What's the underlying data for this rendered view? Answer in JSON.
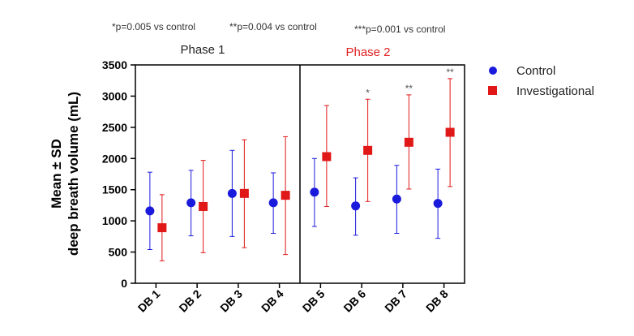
{
  "annotations": {
    "sig1": "*p=0.005 vs control",
    "sig2": "**p=0.004 vs control",
    "sig3": "***p=0.001 vs control"
  },
  "phases": [
    {
      "label": "Phase 1",
      "color": "#222222"
    },
    {
      "label": "Phase 2",
      "color": "#e02020"
    }
  ],
  "legend": {
    "control": "Control",
    "investigational": "Investigational"
  },
  "chart_data": {
    "type": "scatter",
    "subtype": "mean-with-error-bars",
    "title": "",
    "xlabel": "",
    "ylabel_line1": "Mean ± SD",
    "ylabel_line2": "deep breath volume (mL)",
    "ylim": [
      0,
      3500
    ],
    "yticks": [
      0,
      500,
      1000,
      1500,
      2000,
      2500,
      3000,
      3500
    ],
    "ytick_labels": [
      "0",
      "500",
      "1000",
      "1500",
      "2000",
      "2500",
      "3000",
      "3500"
    ],
    "categories": [
      "DB 1",
      "DB 2",
      "DB 3",
      "DB 4",
      "DB 5",
      "DB 6",
      "DB 7",
      "DB 8"
    ],
    "grid": false,
    "legend_position": "right",
    "phase_divider_after_index": 3,
    "series": [
      {
        "name": "Control",
        "color": "#1a1adc",
        "marker": "circle",
        "mean": [
          1160,
          1290,
          1440,
          1290,
          1460,
          1240,
          1350,
          1280
        ],
        "lower": [
          540,
          760,
          750,
          800,
          910,
          770,
          800,
          720
        ],
        "upper": [
          1780,
          1810,
          2130,
          1770,
          2000,
          1690,
          1890,
          1830
        ]
      },
      {
        "name": "Investigational",
        "color": "#e01818",
        "marker": "square",
        "mean": [
          890,
          1230,
          1440,
          1410,
          2030,
          2130,
          2260,
          2420
        ],
        "lower": [
          360,
          490,
          570,
          460,
          1230,
          1310,
          1510,
          1550
        ],
        "upper": [
          1420,
          1970,
          2300,
          2350,
          2850,
          2950,
          3020,
          3280
        ],
        "significance": [
          "",
          "",
          "",
          "",
          "",
          "*",
          "**",
          "**"
        ]
      }
    ]
  }
}
